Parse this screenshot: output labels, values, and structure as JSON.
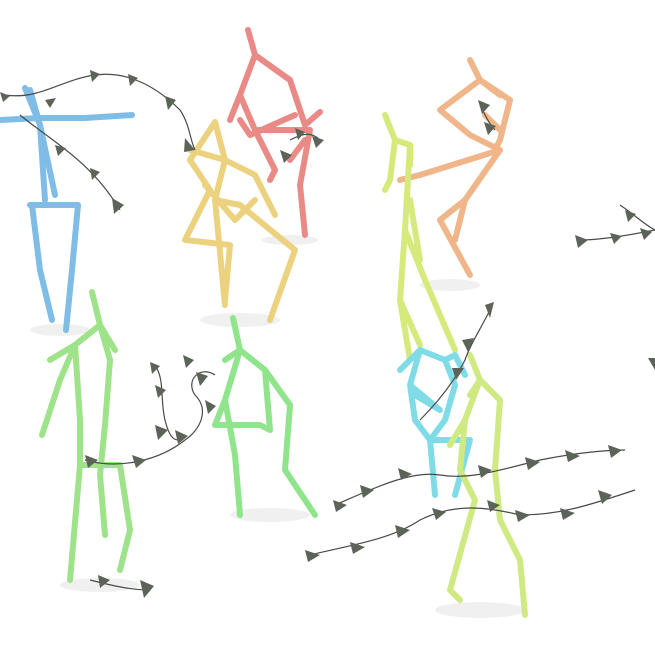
{
  "scene": {
    "background": "#ffffff",
    "trajectory_color": "#4a4a48",
    "arrow_color": "#5c6358",
    "figures": [
      {
        "name": "blue-stick-figure",
        "color": "#7fbde6"
      },
      {
        "name": "red-stick-figure",
        "color": "#e98a87"
      },
      {
        "name": "yellow-stick-figure",
        "color": "#ecd27e"
      },
      {
        "name": "orange-stick-figure",
        "color": "#f0b68a"
      },
      {
        "name": "lime-stick-figure",
        "color": "#d6ea7c"
      },
      {
        "name": "green-stick-figure-left",
        "color": "#9ee38a"
      },
      {
        "name": "green-stick-figure-middle",
        "color": "#8fe48c"
      },
      {
        "name": "cyan-stick-figure",
        "color": "#7fdce6"
      },
      {
        "name": "lime-stick-figure-front",
        "color": "#cfe983"
      }
    ]
  }
}
